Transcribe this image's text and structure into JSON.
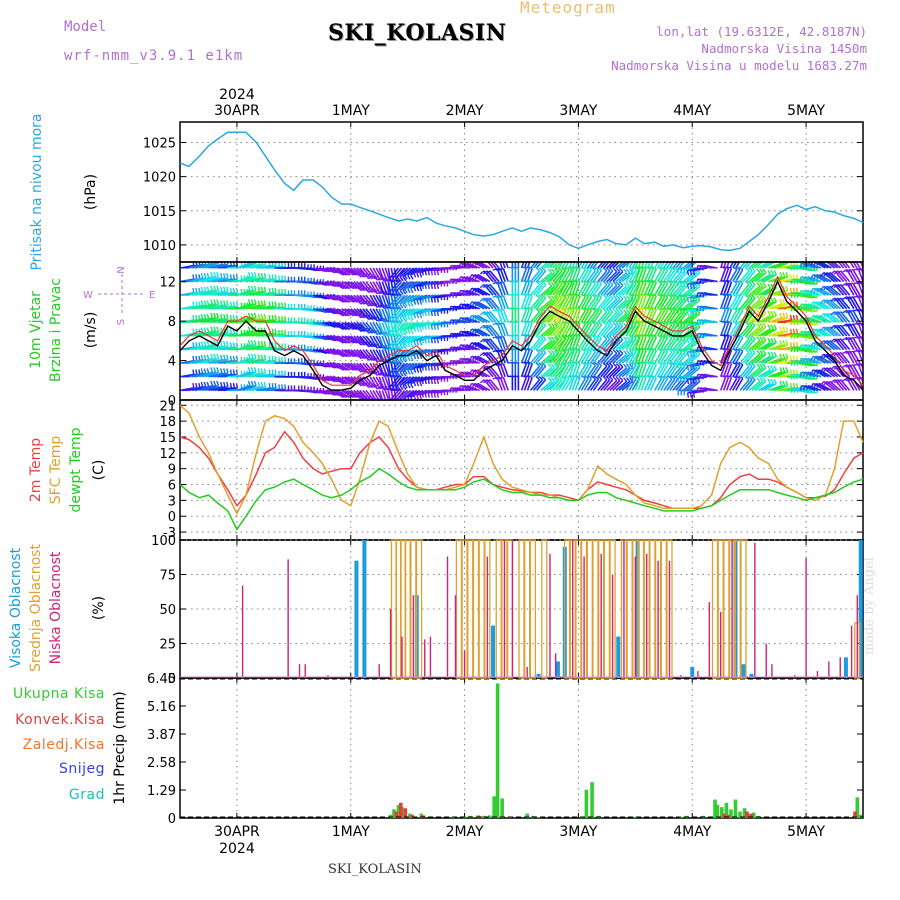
{
  "header": {
    "station": "SKI_KOLASIN",
    "kind": "Meteogram",
    "model_label": "Model",
    "model_version": "wrf-nmm_v3.9.1  e1km",
    "coords": "lon,lat (19.6312E, 42.8187N)",
    "elevation": "Nadmorska Visina 1450m",
    "model_elevation": "Nadmorska Visina u modelu 1683.27m"
  },
  "footer_station": "SKI_KOLASIN",
  "watermark": "made by Angel",
  "colors": {
    "pressure": "#2aa7e0",
    "temp2m": "#ef4040",
    "sfc_temp": "#e0a030",
    "dewpoint": "#22cc22",
    "high_cloud": "#1c9be0",
    "mid_cloud": "#e0a030",
    "low_cloud": "#cc2277",
    "precip_total": "#33cc33",
    "precip_conv": "#e04040",
    "precip_freezing": "#ee7733",
    "precip_snow": "#3344dd",
    "precip_grad": "#22bbbb",
    "model_label": "#b070d0"
  },
  "chart_data": [
    {
      "type": "line",
      "panel": "pressure",
      "ylabel_rotated": "Pritisak na nivou mora",
      "unit": "(hPa)",
      "yticks": [
        1010,
        1015,
        1020,
        1025
      ],
      "ylim": [
        1007.5,
        1028
      ],
      "x_date_labels": [
        "30APR",
        "1MAY",
        "2MAY",
        "3MAY",
        "4MAY",
        "5MAY"
      ],
      "x_year": "2024",
      "x_day_start": -0.5,
      "x_day_end": 5.5,
      "x": [
        -0.5,
        -0.42,
        -0.33,
        -0.25,
        -0.17,
        -0.08,
        0.0,
        0.08,
        0.17,
        0.25,
        0.33,
        0.42,
        0.5,
        0.58,
        0.67,
        0.75,
        0.83,
        0.92,
        1.0,
        1.08,
        1.17,
        1.25,
        1.33,
        1.42,
        1.5,
        1.58,
        1.67,
        1.75,
        1.83,
        1.92,
        2.0,
        2.08,
        2.17,
        2.25,
        2.33,
        2.42,
        2.5,
        2.58,
        2.67,
        2.75,
        2.83,
        2.92,
        3.0,
        3.08,
        3.17,
        3.25,
        3.33,
        3.42,
        3.5,
        3.58,
        3.67,
        3.75,
        3.83,
        3.92,
        4.0,
        4.08,
        4.17,
        4.25,
        4.33,
        4.42,
        4.5,
        4.58,
        4.67,
        4.75,
        4.83,
        4.92,
        5.0,
        5.08,
        5.17,
        5.25,
        5.33,
        5.42,
        5.5
      ],
      "y": [
        1022,
        1021.5,
        1023,
        1024.5,
        1025.5,
        1026.5,
        1026.5,
        1026.5,
        1025,
        1023,
        1021,
        1019,
        1018,
        1019.5,
        1019.5,
        1018.5,
        1017,
        1016,
        1016,
        1015.5,
        1015,
        1014.5,
        1014,
        1013.5,
        1013.8,
        1013.5,
        1014,
        1013.2,
        1012.8,
        1012.5,
        1012,
        1011.5,
        1011.3,
        1011.5,
        1012,
        1012.5,
        1012,
        1012.5,
        1012.2,
        1011.8,
        1011.2,
        1010,
        1009.5,
        1010,
        1010.5,
        1010.8,
        1010.2,
        1010,
        1011,
        1010.2,
        1010.4,
        1009.8,
        1010,
        1009.6,
        1009.8,
        1009.9,
        1009.7,
        1009.3,
        1009.2,
        1009.5,
        1010.5,
        1011.5,
        1013,
        1014.5,
        1015.3,
        1015.8,
        1015.2,
        1015.6,
        1015,
        1014.8,
        1014.3,
        1013.9,
        1013.3
      ]
    },
    {
      "type": "line",
      "panel": "wind",
      "ylabel_line1": "10m Vjetar",
      "ylabel_line2": "Brzina i Pravac",
      "unit": "(m/s)",
      "compass": [
        "N",
        "E",
        "S",
        "W"
      ],
      "yticks": [
        0,
        4,
        8,
        12
      ],
      "ylim": [
        0,
        14
      ],
      "x": [
        -0.5,
        -0.42,
        -0.33,
        -0.25,
        -0.17,
        -0.08,
        0.0,
        0.08,
        0.17,
        0.25,
        0.33,
        0.42,
        0.5,
        0.58,
        0.67,
        0.75,
        0.83,
        0.92,
        1.0,
        1.08,
        1.17,
        1.25,
        1.33,
        1.42,
        1.5,
        1.58,
        1.67,
        1.75,
        1.83,
        1.92,
        2.0,
        2.08,
        2.17,
        2.25,
        2.33,
        2.42,
        2.5,
        2.58,
        2.67,
        2.75,
        2.83,
        2.92,
        3.0,
        3.08,
        3.17,
        3.25,
        3.33,
        3.42,
        3.5,
        3.58,
        3.67,
        3.75,
        3.83,
        3.92,
        4.0,
        4.08,
        4.17,
        4.25,
        4.33,
        4.42,
        4.5,
        4.58,
        4.67,
        4.75,
        4.83,
        4.92,
        5.0,
        5.08,
        5.17,
        5.25,
        5.33,
        5.42,
        5.5
      ],
      "speed": [
        5,
        6,
        6.5,
        6,
        5.5,
        7.5,
        7,
        8,
        7,
        7,
        5,
        4.5,
        5,
        4.5,
        3,
        1.5,
        1,
        1,
        1.2,
        2,
        2.5,
        3.5,
        4,
        4.5,
        4.5,
        5,
        4,
        4.5,
        3,
        2.5,
        2,
        2,
        3,
        3.5,
        4,
        5.5,
        5,
        6,
        8,
        9,
        8.5,
        8,
        7,
        6,
        5,
        4.5,
        6,
        7,
        9,
        8,
        7.5,
        7,
        6.5,
        6.5,
        7,
        5,
        3.5,
        3,
        5,
        7,
        9,
        8,
        10,
        12,
        10,
        9,
        8,
        6,
        5,
        4,
        2.5,
        2,
        1
      ],
      "speed_gust": [
        5.5,
        6.5,
        7,
        6.5,
        6,
        8,
        8,
        8.5,
        8,
        8,
        6,
        5,
        5.5,
        5,
        3.5,
        2,
        1.5,
        1.5,
        1.5,
        2.5,
        3,
        4,
        4.5,
        5,
        5,
        5.5,
        4.5,
        5,
        3.5,
        3,
        2.5,
        2.5,
        3.5,
        4,
        4.5,
        6,
        5.5,
        6.5,
        8.5,
        9.5,
        9,
        8.5,
        7.5,
        6.5,
        5.5,
        5,
        6.5,
        7.5,
        9.5,
        8.5,
        8,
        7.5,
        7,
        7,
        7.5,
        5.5,
        4,
        3.5,
        5.5,
        7.5,
        9.5,
        8.5,
        10.5,
        12.5,
        10.5,
        9.5,
        8.5,
        6.5,
        5.5,
        4.5,
        3,
        2.5,
        1.5
      ],
      "direction_deg": [
        260,
        255,
        250,
        255,
        260,
        265,
        250,
        255,
        260,
        265,
        270,
        270,
        275,
        280,
        285,
        290,
        300,
        300,
        310,
        320,
        330,
        340,
        350,
        40,
        50,
        60,
        70,
        80,
        80,
        90,
        100,
        110,
        120,
        140,
        160,
        180,
        200,
        220,
        230,
        220,
        210,
        200,
        210,
        215,
        220,
        225,
        230,
        210,
        200,
        205,
        210,
        215,
        220,
        230,
        90,
        80,
        100,
        200,
        210,
        220,
        230,
        240,
        250,
        260,
        270,
        280,
        100,
        110,
        120,
        130,
        140,
        150,
        160
      ]
    },
    {
      "type": "line",
      "panel": "temperature",
      "ylabel_line1": "2m Temp",
      "ylabel_line2": "SFC Temp",
      "ylabel_line3": "dewpt Temp",
      "unit": "(C)",
      "yticks": [
        -3,
        0,
        3,
        6,
        9,
        12,
        15,
        18,
        21
      ],
      "ylim": [
        -4.5,
        22
      ],
      "x": [
        -0.5,
        -0.42,
        -0.33,
        -0.25,
        -0.17,
        -0.08,
        0.0,
        0.08,
        0.17,
        0.25,
        0.33,
        0.42,
        0.5,
        0.58,
        0.67,
        0.75,
        0.83,
        0.92,
        1.0,
        1.08,
        1.17,
        1.25,
        1.33,
        1.42,
        1.5,
        1.58,
        1.67,
        1.75,
        1.83,
        1.92,
        2.0,
        2.08,
        2.17,
        2.25,
        2.33,
        2.42,
        2.5,
        2.58,
        2.67,
        2.75,
        2.83,
        2.92,
        3.0,
        3.08,
        3.17,
        3.25,
        3.33,
        3.42,
        3.5,
        3.58,
        3.67,
        3.75,
        3.83,
        3.92,
        4.0,
        4.08,
        4.17,
        4.25,
        4.33,
        4.42,
        4.5,
        4.58,
        4.67,
        4.75,
        4.83,
        4.92,
        5.0,
        5.08,
        5.17,
        5.25,
        5.33,
        5.42,
        5.5
      ],
      "series": [
        {
          "key": "temp2m",
          "values": [
            15,
            14.5,
            13,
            11,
            8,
            5,
            2,
            4,
            8,
            12,
            13,
            16,
            14,
            11,
            9,
            8,
            8.5,
            9,
            9,
            12,
            14,
            15,
            13,
            9,
            7,
            5.5,
            5,
            5,
            5.5,
            6,
            6,
            7.5,
            7.5,
            6,
            5.5,
            5,
            4.8,
            4.5,
            4.5,
            4,
            4,
            3.5,
            3,
            5,
            6.5,
            6,
            5.5,
            5,
            4,
            3,
            2.5,
            2,
            1.5,
            1.5,
            1.5,
            1.5,
            2,
            3.5,
            6,
            7.5,
            8,
            7,
            7,
            6.5,
            5.5,
            4.5,
            3.5,
            3.5,
            3.8,
            5,
            8,
            11,
            12
          ]
        },
        {
          "key": "sfc_temp",
          "values": [
            21,
            19.5,
            15,
            12,
            8,
            4,
            0.5,
            4,
            12,
            18,
            19,
            18.5,
            17,
            14,
            12,
            10,
            7,
            3,
            2,
            7,
            14,
            18,
            17,
            12,
            8,
            5.5,
            5,
            5,
            5,
            5.5,
            6,
            10,
            15,
            10,
            7,
            5.5,
            5,
            4.5,
            4,
            4,
            3.5,
            3,
            3,
            5,
            9.5,
            8,
            7,
            6,
            4,
            2.5,
            2,
            1.5,
            1.5,
            1.5,
            1.5,
            2,
            4,
            10,
            13,
            14,
            13,
            11,
            10,
            7,
            5.5,
            4.5,
            3.5,
            3,
            4,
            9,
            18,
            18,
            14
          ]
        },
        {
          "key": "dewpoint",
          "values": [
            6,
            4.5,
            3.5,
            4,
            2.5,
            1,
            -2.5,
            0,
            3,
            5,
            5.5,
            6.5,
            7,
            6,
            5,
            4,
            3.5,
            4,
            5,
            6.5,
            7.5,
            9,
            8,
            6.5,
            5.5,
            5,
            5,
            5,
            5,
            5,
            5.5,
            6.5,
            7,
            6,
            5,
            4.5,
            4.5,
            4,
            4,
            3.5,
            3.5,
            3,
            3,
            4,
            4.5,
            4.5,
            3.5,
            3,
            2.5,
            2,
            1.5,
            1,
            1,
            1,
            1,
            1.5,
            2,
            3,
            4,
            5,
            5,
            5,
            5,
            4.5,
            4,
            3.5,
            3,
            3.5,
            4,
            4.5,
            5.5,
            6.5,
            7
          ]
        }
      ]
    },
    {
      "type": "bar",
      "panel": "clouds",
      "ylabel_line1": "Visoka Oblacnost",
      "ylabel_line2": "Srednja Oblacnost",
      "ylabel_line3": "Niska Oblacnost",
      "unit": "(%)",
      "yticks": [
        0,
        25,
        50,
        75,
        100
      ],
      "ylim": [
        0,
        100
      ],
      "series": [
        {
          "key": "high_cloud",
          "x": [
            1.05,
            1.12,
            1.58,
            2.25,
            2.65,
            2.82,
            2.88,
            3.35,
            3.52,
            4.0,
            4.38,
            4.45,
            4.52,
            5.35,
            5.48
          ],
          "values": [
            85,
            100,
            60,
            38,
            3,
            12,
            95,
            30,
            100,
            8,
            100,
            10,
            3,
            15,
            100
          ]
        },
        {
          "key": "mid_cloud",
          "x": [
            1.38,
            1.42,
            1.46,
            1.5,
            1.55,
            1.6,
            1.95,
            2.0,
            2.05,
            2.1,
            2.15,
            2.2,
            2.3,
            2.35,
            2.4,
            2.5,
            2.55,
            2.6,
            2.7,
            2.9,
            2.95,
            3.0,
            3.05,
            3.1,
            3.15,
            3.2,
            3.25,
            3.3,
            3.4,
            3.45,
            3.5,
            3.55,
            3.6,
            3.65,
            3.7,
            3.75,
            3.8,
            4.2,
            4.25,
            4.3,
            4.35,
            4.4,
            4.45,
            5.45
          ],
          "values": [
            100,
            100,
            100,
            100,
            100,
            100,
            100,
            100,
            100,
            100,
            100,
            100,
            100,
            100,
            100,
            100,
            100,
            100,
            100,
            100,
            100,
            100,
            100,
            100,
            100,
            100,
            100,
            100,
            100,
            100,
            100,
            100,
            100,
            100,
            100,
            100,
            100,
            100,
            100,
            100,
            100,
            100,
            100,
            40
          ]
        },
        {
          "key": "low_cloud",
          "x": [
            0.05,
            0.45,
            0.55,
            0.6,
            0.8,
            1.25,
            1.35,
            1.45,
            1.55,
            1.65,
            1.7,
            1.85,
            1.92,
            2.0,
            2.2,
            2.35,
            2.42,
            2.55,
            2.75,
            2.8,
            2.95,
            3.05,
            3.2,
            3.3,
            3.4,
            3.5,
            3.6,
            3.7,
            3.8,
            3.9,
            4.05,
            4.15,
            4.25,
            4.35,
            4.55,
            4.65,
            4.7,
            4.9,
            5.0,
            5.1,
            5.2,
            5.3,
            5.4,
            5.45
          ],
          "values": [
            67,
            86,
            10,
            10,
            2,
            10,
            50,
            30,
            60,
            28,
            30,
            88,
            60,
            20,
            88,
            100,
            100,
            8,
            90,
            18,
            100,
            88,
            90,
            75,
            100,
            88,
            90,
            85,
            85,
            2,
            5,
            55,
            48,
            100,
            98,
            25,
            10,
            2,
            87,
            5,
            12,
            15,
            38,
            60
          ]
        }
      ]
    },
    {
      "type": "bar",
      "panel": "precipitation",
      "ylabel": "1hr Precip (mm)",
      "legend": [
        "Ukupna Kisa",
        "Konvek.Kisa",
        "Zaledj.Kisa",
        "Snijeg",
        "Grad"
      ],
      "yticks": [
        0,
        1.29,
        2.58,
        3.87,
        5.16,
        6.45
      ],
      "ylim": [
        0,
        6.45
      ],
      "series": [
        {
          "key": "precip_total",
          "x": [
            1.35,
            1.38,
            1.42,
            1.45,
            1.52,
            1.62,
            1.9,
            2.0,
            2.05,
            2.12,
            2.17,
            2.22,
            2.26,
            2.29,
            2.33,
            2.4,
            2.55,
            2.6,
            2.65,
            3.03,
            3.07,
            3.12,
            3.18,
            3.5,
            3.9,
            3.95,
            4.1,
            4.2,
            4.22,
            4.26,
            4.3,
            4.34,
            4.38,
            4.42,
            4.46,
            4.5,
            4.54,
            4.58,
            5.45,
            5.48
          ],
          "values": [
            0.15,
            0.4,
            0.6,
            0.5,
            0.2,
            0.2,
            0.05,
            0.08,
            0.1,
            0.12,
            0.1,
            0.12,
            1.0,
            6.2,
            0.9,
            0.05,
            0.2,
            0.1,
            0.05,
            0.05,
            1.3,
            1.65,
            0.1,
            0.05,
            0.05,
            0.1,
            0.1,
            0.85,
            0.6,
            0.5,
            0.7,
            0.4,
            0.85,
            0.3,
            0.45,
            0.2,
            0.25,
            0.1,
            0.95,
            0.15
          ]
        },
        {
          "key": "precip_conv",
          "x": [
            1.4,
            1.44,
            1.48,
            1.54,
            1.64,
            2.07,
            2.14,
            4.28,
            4.32,
            4.48,
            4.52,
            5.43
          ],
          "values": [
            0.3,
            0.7,
            0.45,
            0.15,
            0.12,
            0.05,
            0.08,
            0.2,
            0.15,
            0.3,
            0.2,
            0.3
          ]
        }
      ]
    }
  ]
}
